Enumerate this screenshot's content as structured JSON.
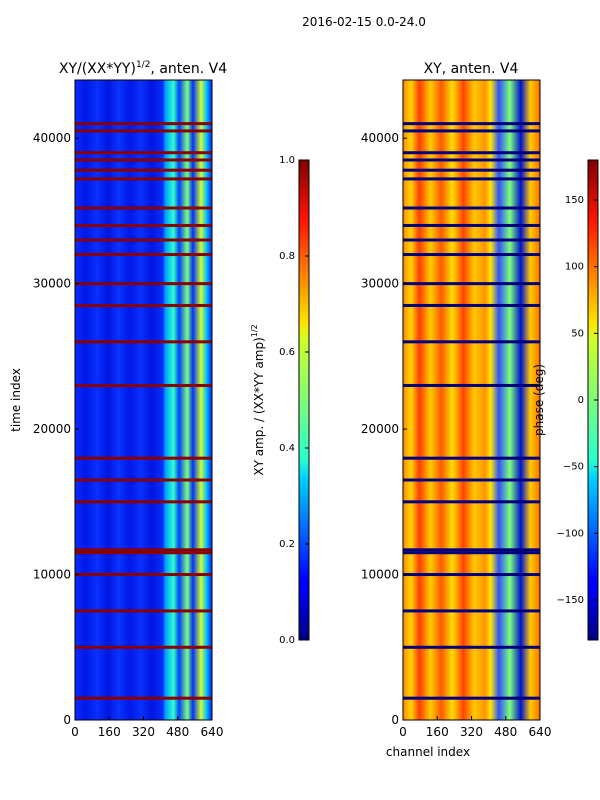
{
  "figure_title": "2016-02-15 0.0-24.0",
  "chart_data": [
    {
      "type": "heatmap",
      "title_text": "XY/(XX*YY)",
      "title_exponent": "1/2",
      "title_suffix": ", anten. V4",
      "xlabel": "",
      "ylabel": "time index",
      "xlim": [
        0,
        640
      ],
      "ylim": [
        0,
        44000
      ],
      "xticks": [
        "0",
        "160",
        "320",
        "480",
        "640"
      ],
      "xtick_values": [
        0,
        160,
        320,
        480,
        640
      ],
      "yticks": [
        "0",
        "10000",
        "20000",
        "30000",
        "40000"
      ],
      "ytick_values": [
        0,
        10000,
        20000,
        30000,
        40000
      ],
      "colormap": "jet",
      "colorbar": {
        "label_text": "XY amp. / (XX*YY amp)",
        "label_exponent": "1/2",
        "range": [
          0.0,
          1.0
        ],
        "ticks": [
          "0.0",
          "0.2",
          "0.4",
          "0.6",
          "0.8",
          "1.0"
        ],
        "tick_values": [
          0.0,
          0.2,
          0.4,
          0.6,
          0.8,
          1.0
        ]
      },
      "flagged_time_rows": [
        1500,
        5000,
        7500,
        10000,
        11500,
        11700,
        15000,
        16500,
        18000,
        23000,
        26000,
        28500,
        30000,
        32000,
        33000,
        34000,
        35200,
        37200,
        37800,
        38500,
        39000,
        40500,
        41000
      ]
    },
    {
      "type": "heatmap",
      "title_text": "XY, anten. V4",
      "xlabel": "channel index",
      "ylabel": "",
      "xlim": [
        0,
        640
      ],
      "ylim": [
        0,
        44000
      ],
      "xticks": [
        "0",
        "160",
        "320",
        "480",
        "640"
      ],
      "xtick_values": [
        0,
        160,
        320,
        480,
        640
      ],
      "yticks": [
        "0",
        "10000",
        "20000",
        "30000",
        "40000"
      ],
      "ytick_values": [
        0,
        10000,
        20000,
        30000,
        40000
      ],
      "colormap": "jet",
      "colorbar": {
        "label_text": "phase (deg)",
        "range": [
          -180,
          180
        ],
        "ticks": [
          "−150",
          "−100",
          "−50",
          "0",
          "50",
          "100",
          "150"
        ],
        "tick_values": [
          -150,
          -100,
          -50,
          0,
          50,
          100,
          150
        ]
      },
      "flagged_time_rows": [
        1500,
        5000,
        7500,
        10000,
        11500,
        11700,
        15000,
        16500,
        18000,
        23000,
        26000,
        28500,
        30000,
        32000,
        33000,
        34000,
        35200,
        37200,
        37800,
        38500,
        39000,
        40500,
        41000
      ]
    }
  ]
}
